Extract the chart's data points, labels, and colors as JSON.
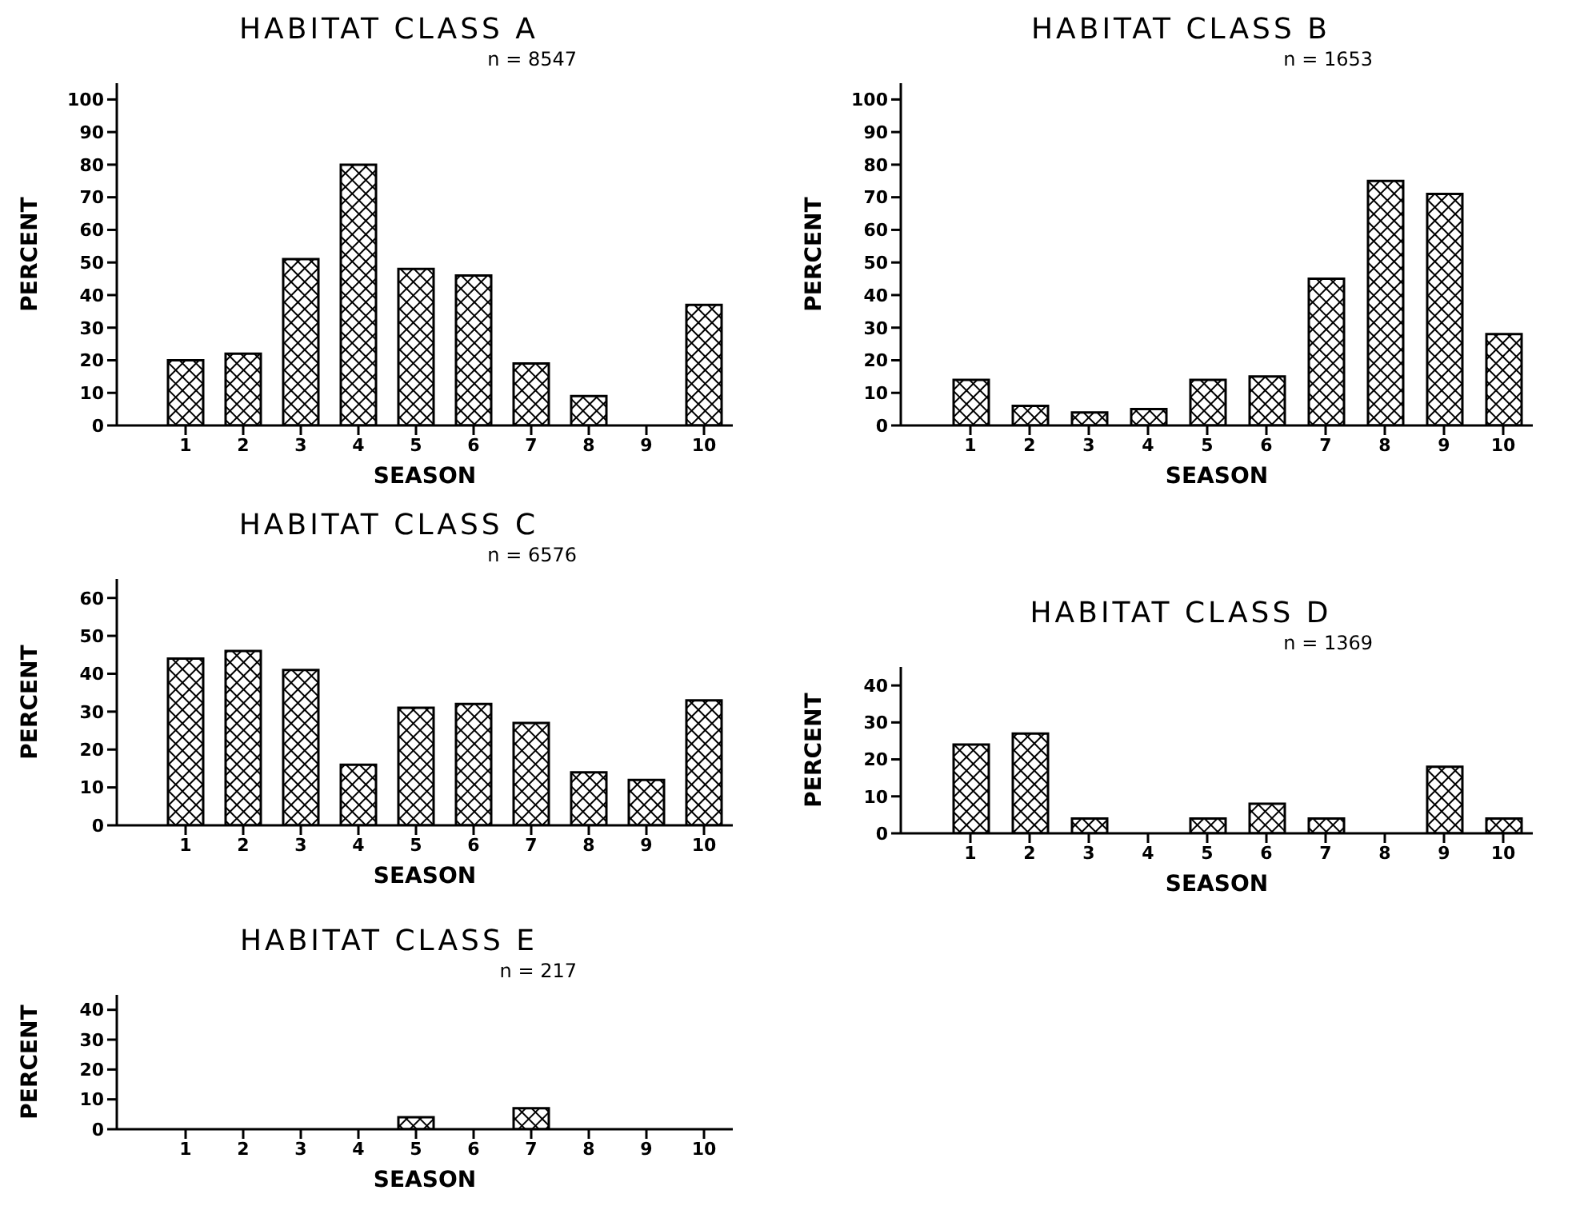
{
  "chart_data": [
    {
      "type": "bar",
      "title": "HABITAT CLASS A",
      "subtitle": "n = 8547",
      "xlabel": "SEASON",
      "ylabel": "PERCENT",
      "categories": [
        "1",
        "2",
        "3",
        "4",
        "5",
        "6",
        "7",
        "8",
        "9",
        "10"
      ],
      "values": [
        20,
        22,
        51,
        80,
        48,
        46,
        19,
        9,
        0,
        37
      ],
      "color": "#000000",
      "ylim": [
        0,
        105
      ],
      "yticks": [
        0,
        10,
        20,
        30,
        40,
        50,
        60,
        70,
        80,
        90,
        100
      ]
    },
    {
      "type": "bar",
      "title": "HABITAT CLASS B",
      "subtitle": "n = 1653",
      "xlabel": "SEASON",
      "ylabel": "PERCENT",
      "categories": [
        "1",
        "2",
        "3",
        "4",
        "5",
        "6",
        "7",
        "8",
        "9",
        "10"
      ],
      "values": [
        14,
        6,
        4,
        5,
        14,
        15,
        45,
        75,
        71,
        28
      ],
      "color": "#000000",
      "ylim": [
        0,
        105
      ],
      "yticks": [
        0,
        10,
        20,
        30,
        40,
        50,
        60,
        70,
        80,
        90,
        100
      ]
    },
    {
      "type": "bar",
      "title": "HABITAT CLASS C",
      "subtitle": "n = 6576",
      "xlabel": "SEASON",
      "ylabel": "PERCENT",
      "categories": [
        "1",
        "2",
        "3",
        "4",
        "5",
        "6",
        "7",
        "8",
        "9",
        "10"
      ],
      "values": [
        44,
        46,
        41,
        16,
        31,
        32,
        27,
        14,
        12,
        33
      ],
      "color": "#000000",
      "ylim": [
        0,
        65
      ],
      "yticks": [
        0,
        10,
        20,
        30,
        40,
        50,
        60
      ]
    },
    {
      "type": "bar",
      "title": "HABITAT CLASS D",
      "subtitle": "n = 1369",
      "xlabel": "SEASON",
      "ylabel": "PERCENT",
      "categories": [
        "1",
        "2",
        "3",
        "4",
        "5",
        "6",
        "7",
        "8",
        "9",
        "10"
      ],
      "values": [
        24,
        27,
        4,
        0,
        4,
        8,
        4,
        0,
        18,
        4
      ],
      "color": "#000000",
      "ylim": [
        0,
        45
      ],
      "yticks": [
        0,
        10,
        20,
        30,
        40
      ]
    },
    {
      "type": "bar",
      "title": "HABITAT CLASS E",
      "subtitle": "n = 217",
      "xlabel": "SEASON",
      "ylabel": "PERCENT",
      "categories": [
        "1",
        "2",
        "3",
        "4",
        "5",
        "6",
        "7",
        "8",
        "9",
        "10"
      ],
      "values": [
        0,
        0,
        0,
        0,
        4,
        0,
        7,
        0,
        0,
        0
      ],
      "color": "#000000",
      "ylim": [
        0,
        45
      ],
      "yticks": [
        0,
        10,
        20,
        30,
        40
      ]
    }
  ]
}
